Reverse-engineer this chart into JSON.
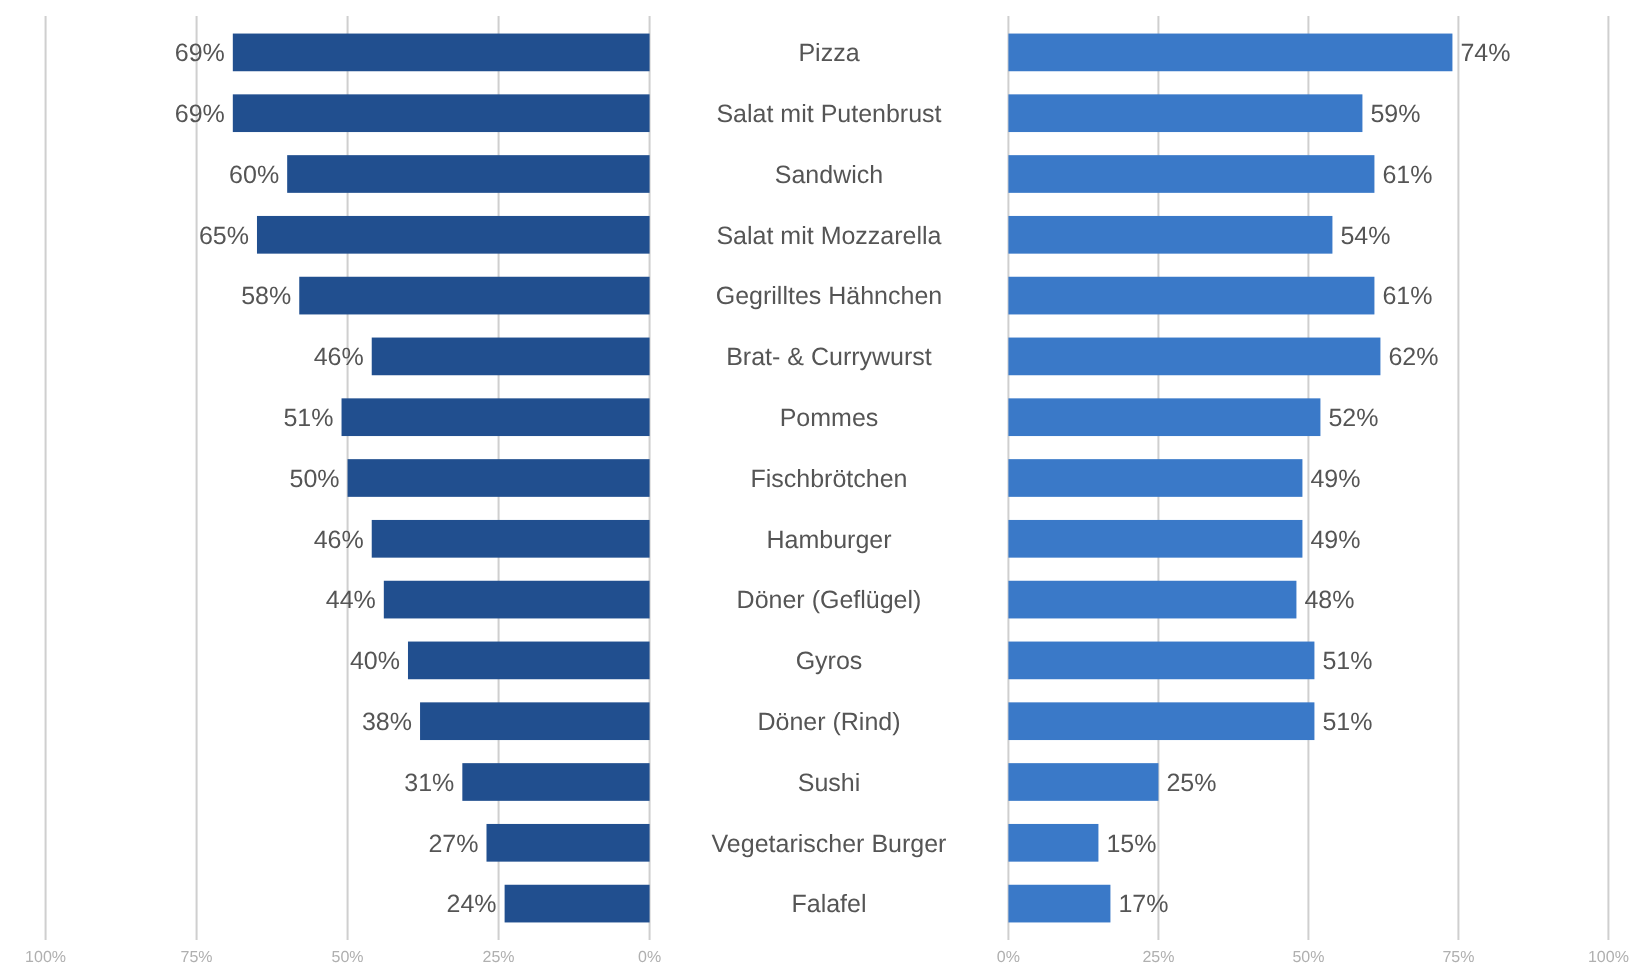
{
  "chart_data": [
    {
      "type": "bar",
      "orientation": "horizontal",
      "categories": [
        "Pizza",
        "Salat mit Putenbrust",
        "Sandwich",
        "Salat mit Mozzarella",
        "Gegrilltes Hähnchen",
        "Brat- & Currywurst",
        "Pommes",
        "Fischbrötchen",
        "Hamburger",
        "Döner (Geflügel)",
        "Gyros",
        "Döner (Rind)",
        "Sushi",
        "Vegetarischer Burger",
        "Falafel"
      ],
      "values": [
        69,
        69,
        60,
        65,
        58,
        46,
        51,
        50,
        46,
        44,
        40,
        38,
        31,
        27,
        24
      ],
      "value_labels": [
        "69%",
        "69%",
        "60%",
        "65%",
        "58%",
        "46%",
        "51%",
        "50%",
        "46%",
        "44%",
        "40%",
        "38%",
        "31%",
        "27%",
        "24%"
      ],
      "color": "#214f8f",
      "xlim": [
        100,
        0
      ],
      "xticks": [
        {
          "value": 100,
          "label": "100%"
        },
        {
          "value": 75,
          "label": "75%"
        },
        {
          "value": 50,
          "label": "50%"
        },
        {
          "value": 25,
          "label": "25%"
        },
        {
          "value": 0,
          "label": "0%"
        }
      ],
      "grid": "x"
    },
    {
      "type": "bar",
      "orientation": "horizontal",
      "categories": [
        "Pizza",
        "Salat mit Putenbrust",
        "Sandwich",
        "Salat mit Mozzarella",
        "Gegrilltes Hähnchen",
        "Brat- & Currywurst",
        "Pommes",
        "Fischbrötchen",
        "Hamburger",
        "Döner (Geflügel)",
        "Gyros",
        "Döner (Rind)",
        "Sushi",
        "Vegetarischer Burger",
        "Falafel"
      ],
      "values": [
        74,
        59,
        61,
        54,
        61,
        62,
        52,
        49,
        49,
        48,
        51,
        51,
        25,
        15,
        17
      ],
      "value_labels": [
        "74%",
        "59%",
        "61%",
        "54%",
        "61%",
        "62%",
        "52%",
        "49%",
        "49%",
        "48%",
        "51%",
        "51%",
        "25%",
        "15%",
        "17%"
      ],
      "color": "#3a79c8",
      "xlim": [
        0,
        100
      ],
      "xticks": [
        {
          "value": 0,
          "label": "0%"
        },
        {
          "value": 25,
          "label": "25%"
        },
        {
          "value": 50,
          "label": "50%"
        },
        {
          "value": 75,
          "label": "75%"
        },
        {
          "value": 100,
          "label": "100%"
        }
      ],
      "grid": "x",
      "tick_labels": "x"
    }
  ]
}
